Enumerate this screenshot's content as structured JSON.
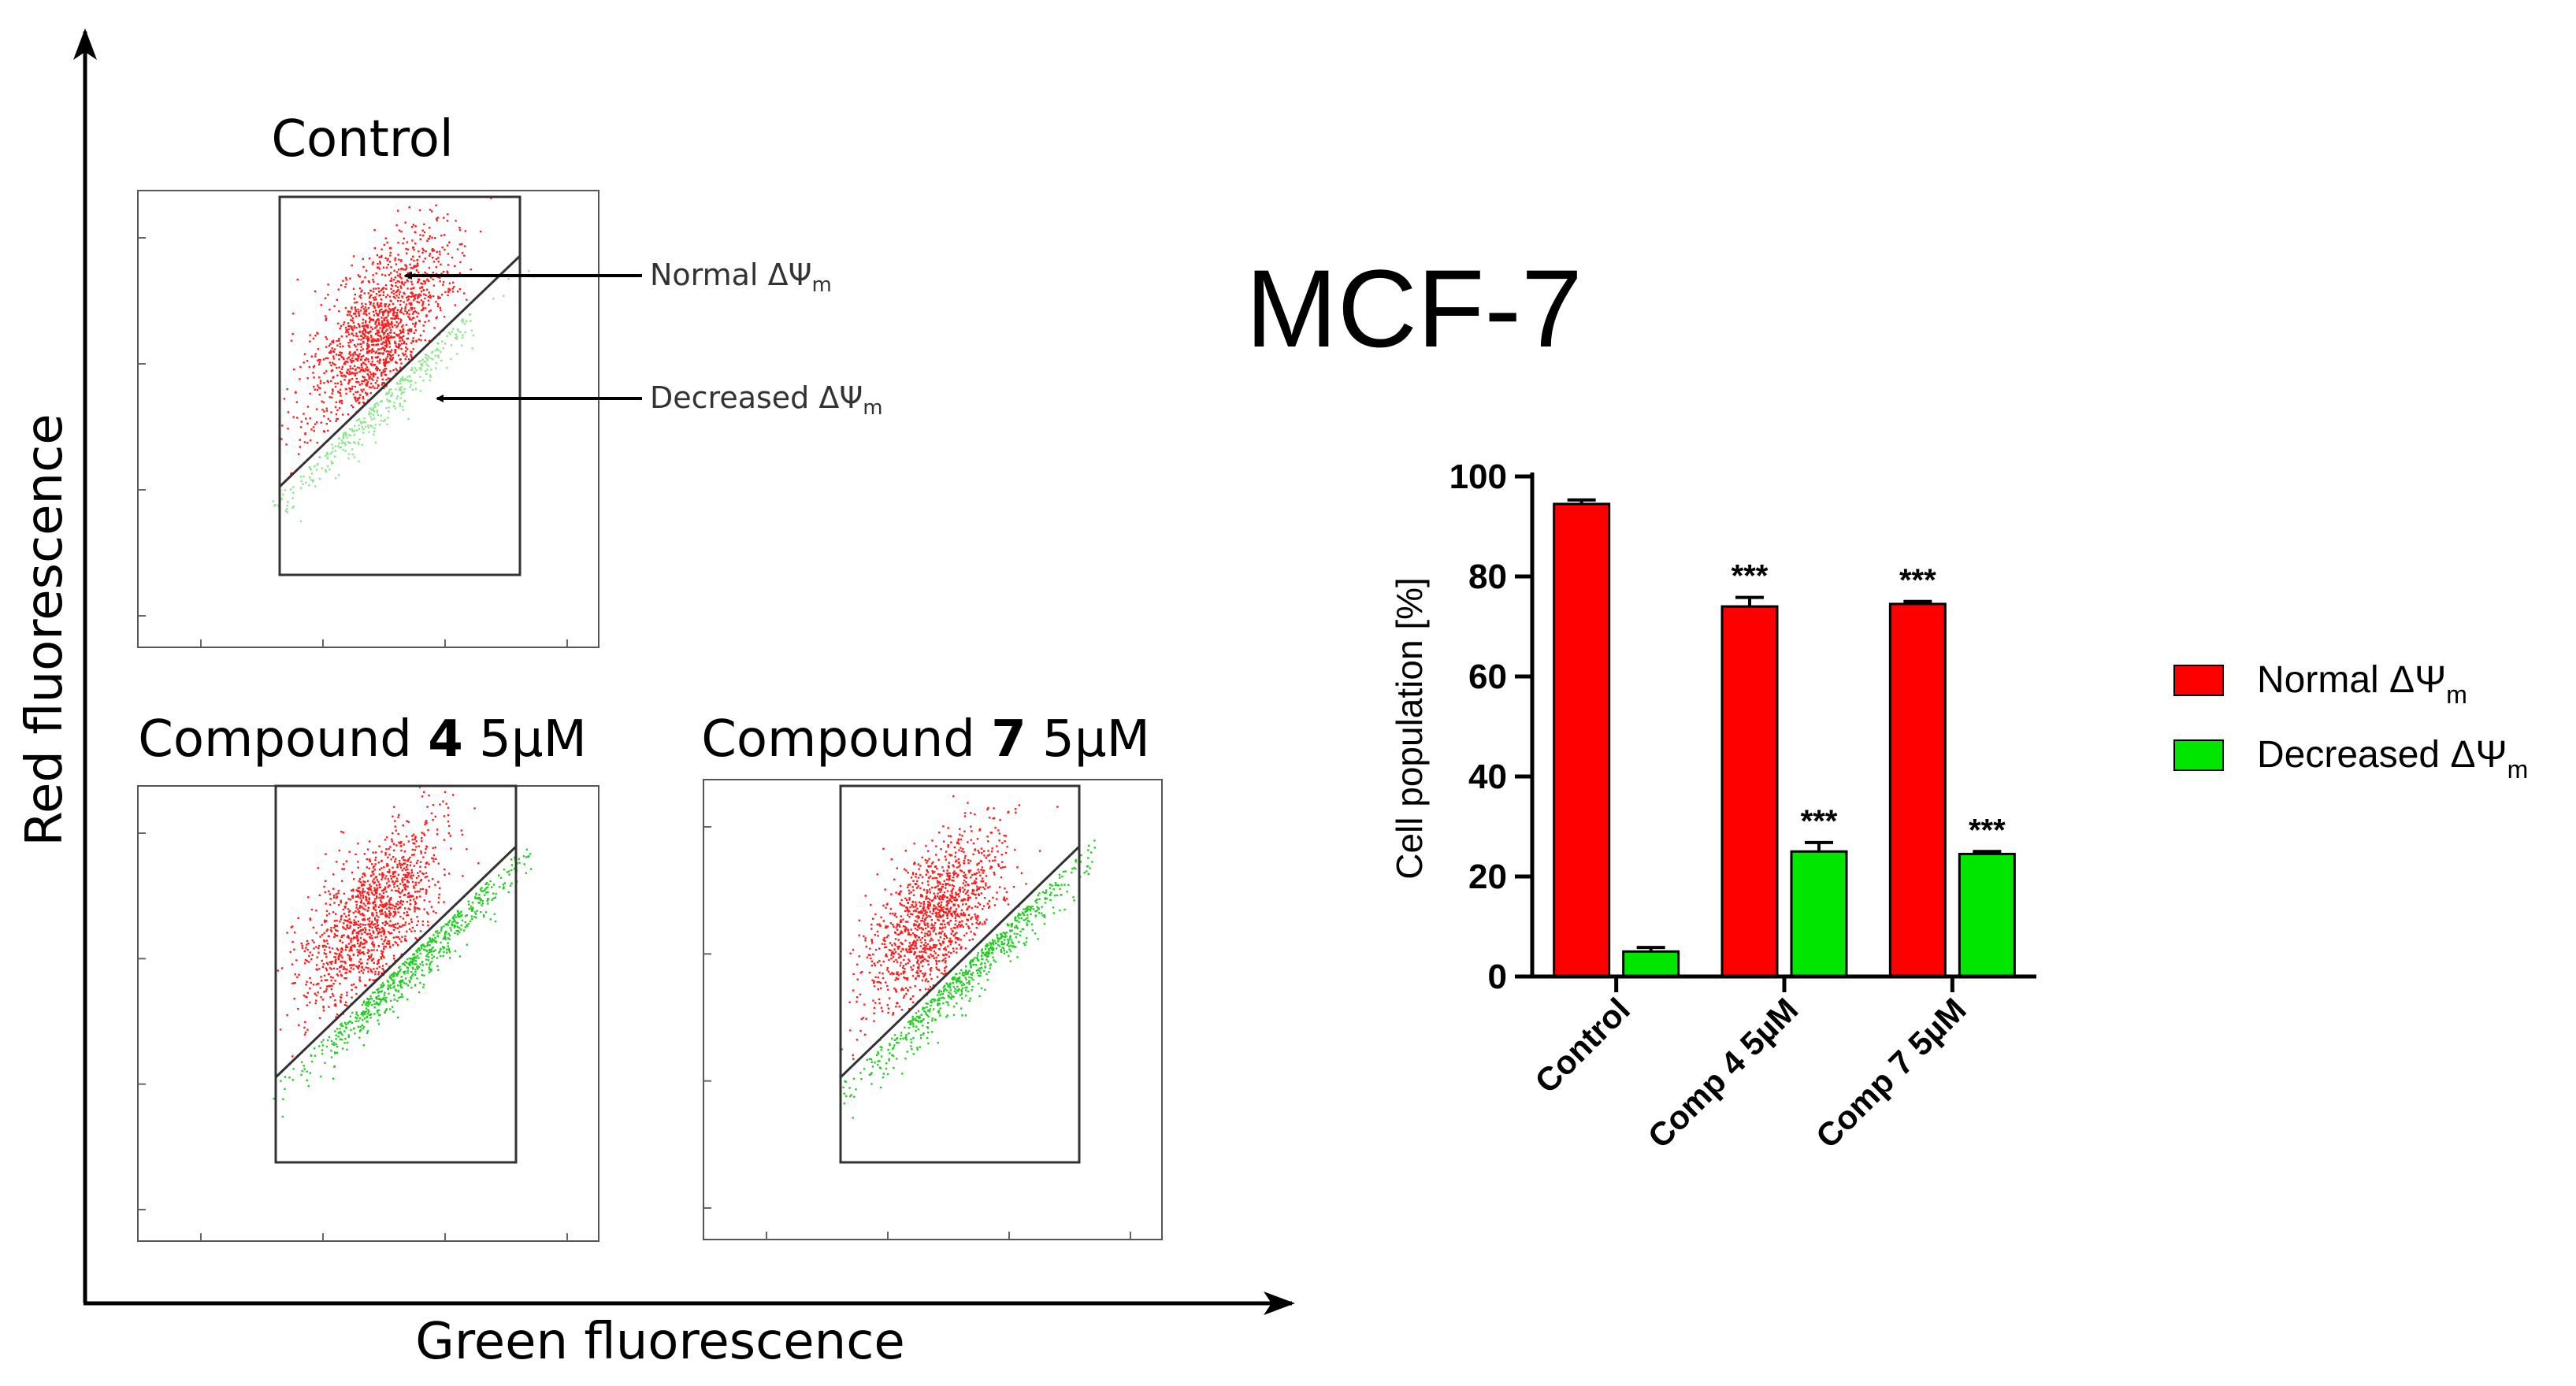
{
  "figure": {
    "left_axis_y_label": "Red fluorescence",
    "left_axis_x_label": "Green fluorescence",
    "cell_line_title": "MCF-7"
  },
  "dot_plots": [
    {
      "title_prefix": "Control",
      "title_bold": "",
      "title_suffix": ""
    },
    {
      "title_prefix": "Compound ",
      "title_bold": "4",
      "title_suffix": " 5µM"
    },
    {
      "title_prefix": "Compound ",
      "title_bold": "7",
      "title_suffix": " 5µM"
    }
  ],
  "annotations": {
    "normal": {
      "text": "Normal ΔΨ",
      "sub": "m"
    },
    "decreased": {
      "text": "Decreased ΔΨ",
      "sub": "m"
    }
  },
  "colors": {
    "normal": "#ff0000",
    "decreased": "#00e600",
    "axis": "#000000"
  },
  "chart_data": {
    "type": "bar",
    "title": "MCF-7",
    "xlabel": "",
    "ylabel": "Cell population [%]",
    "ylim": [
      0,
      100
    ],
    "yticks": [
      "0",
      "20",
      "40",
      "60",
      "80",
      "100"
    ],
    "categories": [
      "Control",
      "Comp 4 5µM",
      "Comp 7 5µM"
    ],
    "series": [
      {
        "name": "Normal ΔΨm",
        "legend_text": "Normal ΔΨ",
        "legend_sub": "m",
        "color": "#ff0000",
        "values": [
          94.5,
          74,
          74.5
        ],
        "errors": [
          0.8,
          1.8,
          0.5
        ],
        "significance": [
          "",
          "***",
          "***"
        ]
      },
      {
        "name": "Decreased ΔΨm",
        "legend_text": "Decreased ΔΨ",
        "legend_sub": "m",
        "color": "#00e600",
        "values": [
          5,
          25,
          24.5
        ],
        "errors": [
          0.8,
          1.8,
          0.5
        ],
        "significance": [
          "",
          "***",
          "***"
        ]
      }
    ]
  }
}
